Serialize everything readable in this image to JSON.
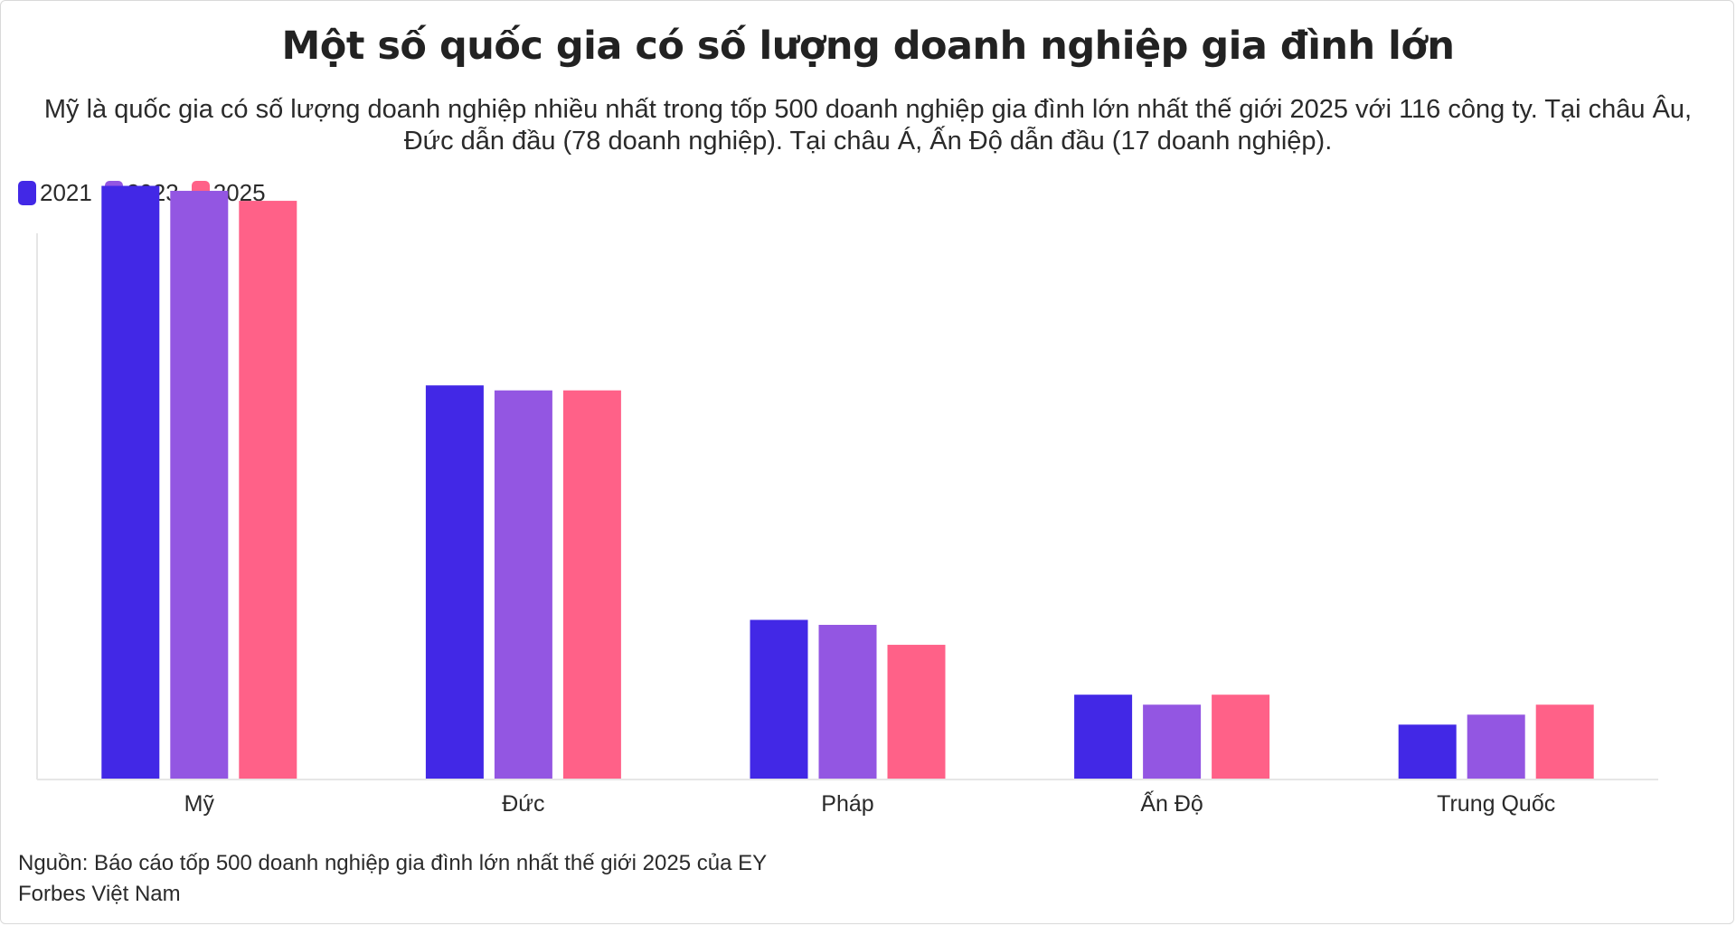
{
  "title": "Một số quốc gia có số lượng doanh nghiệp gia đình lớn",
  "subtitle": "Mỹ là quốc gia có số lượng doanh nghiệp nhiều nhất trong tốp 500 doanh nghiệp gia đình lớn nhất thế giới 2025 với 116 công ty. Tại châu Âu, Đức dẫn đầu (78 doanh nghiệp). Tại châu Á, Ấn Độ dẫn đầu (17 doanh nghiệp).",
  "source_line": "Nguồn: Báo cáo tốp 500 doanh nghiệp gia đình lớn nhất thế giới 2025 của EY",
  "credit_line": "Forbes Việt Nam",
  "chart_data": {
    "type": "bar",
    "categories": [
      "Mỹ",
      "Đức",
      "Pháp",
      "Ấn Độ",
      "Trung Quốc"
    ],
    "series": [
      {
        "name": "2021",
        "color": "#4228e6",
        "values": [
          119,
          79,
          32,
          17,
          11
        ]
      },
      {
        "name": "2023",
        "color": "#9356e2",
        "values": [
          118,
          78,
          31,
          15,
          13
        ]
      },
      {
        "name": "2025",
        "color": "#ff6188",
        "values": [
          116,
          78,
          27,
          17,
          15
        ]
      }
    ],
    "ylim": [
      0,
      120
    ],
    "grid": false,
    "legend_position": "top-left"
  }
}
